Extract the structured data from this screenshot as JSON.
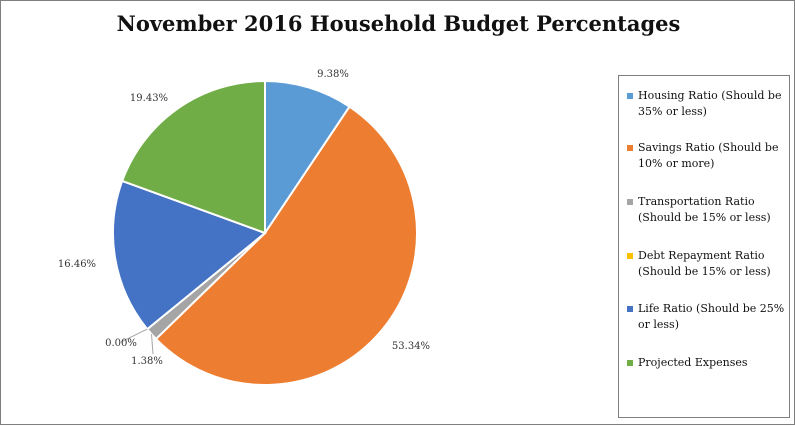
{
  "chart_data": {
    "type": "pie",
    "title": "November 2016 Household Budget Percentages",
    "slices": [
      {
        "name": "Housing Ratio (Should be 35% or less)",
        "value": 9.38,
        "label": "9.38%",
        "color": "#5b9bd5"
      },
      {
        "name": "Savings Ratio (Should be 10% or more)",
        "value": 53.34,
        "label": "53.34%",
        "color": "#ed7d31"
      },
      {
        "name": "Transportation Ratio (Should be 15% or less)",
        "value": 1.38,
        "label": "1.38%",
        "color": "#a5a5a5"
      },
      {
        "name": "Debt Repayment Ratio (Should be 15% or less)",
        "value": 0.0,
        "label": "0.00%",
        "color": "#ffc000"
      },
      {
        "name": "Life Ratio (Should be 25% or less)",
        "value": 16.46,
        "label": "16.46%",
        "color": "#4472c4"
      },
      {
        "name": "Projected Expenses",
        "value": 19.43,
        "label": "19.43%",
        "color": "#70ad47"
      }
    ],
    "legend_position": "right"
  }
}
